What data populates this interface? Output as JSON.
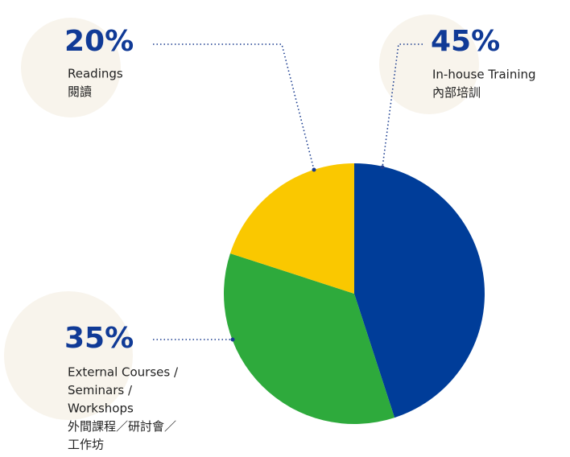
{
  "chart_data": {
    "type": "pie",
    "categories": [
      [
        "In-house Training",
        "內部培訓"
      ],
      [
        "External Courses /",
        "Seminars /",
        "Workshops",
        "外間課程／研討會／",
        "工作坊"
      ],
      [
        "Readings",
        "閱讀"
      ]
    ],
    "values": [
      45,
      35,
      20
    ],
    "value_labels": [
      "45%",
      "35%",
      "20%"
    ],
    "colors": [
      "#003d99",
      "#2eaa3c",
      "#fac800"
    ]
  }
}
